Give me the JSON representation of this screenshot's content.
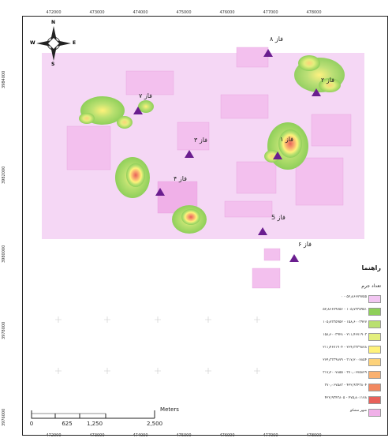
{
  "coords": {
    "top": [
      "472000",
      "473000",
      "474000",
      "475000",
      "476000",
      "477000",
      "478000"
    ],
    "bottom": [
      "472000",
      "473000",
      "474000",
      "475000",
      "476000",
      "477000",
      "478000"
    ],
    "left": [
      "3984000",
      "3982000",
      "3980000",
      "3978000",
      "3976000"
    ]
  },
  "north_arrow": {
    "n": "N",
    "s": "S",
    "e": "E",
    "w": "W"
  },
  "phases": [
    {
      "label": "فاز ۱"
    },
    {
      "label": "فاز ۲"
    },
    {
      "label": "فاز ۳"
    },
    {
      "label": "فاز ۴"
    },
    {
      "label": "فاز 5"
    },
    {
      "label": "فاز ۶"
    },
    {
      "label": "فاز ۷"
    },
    {
      "label": "فاز ۸"
    }
  ],
  "legend": {
    "title": "راهنما",
    "subtitle": "تعداد جرم",
    "items": [
      {
        "label": "۵۲٫۸۶۶۷۹۷۵۵ - ۰",
        "color": "#f2c6f2"
      },
      {
        "label": "۱۰۵٫۷۳۳۵۹۵۱ - ۵۲٫۸۶۶۷۹۷۵۶",
        "color": "#8fcf5a"
      },
      {
        "label": "۱۵۸٫۶۰۰۳۹۲۷ - ۱۰۵٫۷۳۳۵۹۵۲",
        "color": "#b9e070"
      },
      {
        "label": "۲۱۱٫۴۶۷۱۹۰۳ - ۱۵۸٫۶۰۰۳۹۲۸",
        "color": "#e3ef7d"
      },
      {
        "label": "۲۶۴٫۳۳۳۹۸۷۸ - ۲۱۱٫۴۶۷۱۹۰۴",
        "color": "#fff27a"
      },
      {
        "label": "۳۱۷٫۲۰۰۷۸۵۴ - ۲۶۴٫۳۳۳۹۸۷۹",
        "color": "#fdd27a"
      },
      {
        "label": "۳۷۰٫۰۶۷۵۸۲۹ - ۳۱۷٫۲۰۰۷۸۵۵",
        "color": "#f9b070"
      },
      {
        "label": "۴۲۲٫۹۳۴۳۸۰۴ - ۳۷۰٫۰۶۷۵۸۳",
        "color": "#f28860"
      },
      {
        "label": "۴۷۵٫۸۰۱۱۷۸ - ۴۲۲٫۹۳۴۳۸۰۵",
        "color": "#e8605a"
      },
      {
        "label": "شهر مشکو",
        "color": "#f0b0e8"
      }
    ]
  },
  "scale_bar": {
    "ticks": [
      "0",
      "625",
      "1,250",
      "2,500"
    ],
    "unit": "Meters"
  }
}
